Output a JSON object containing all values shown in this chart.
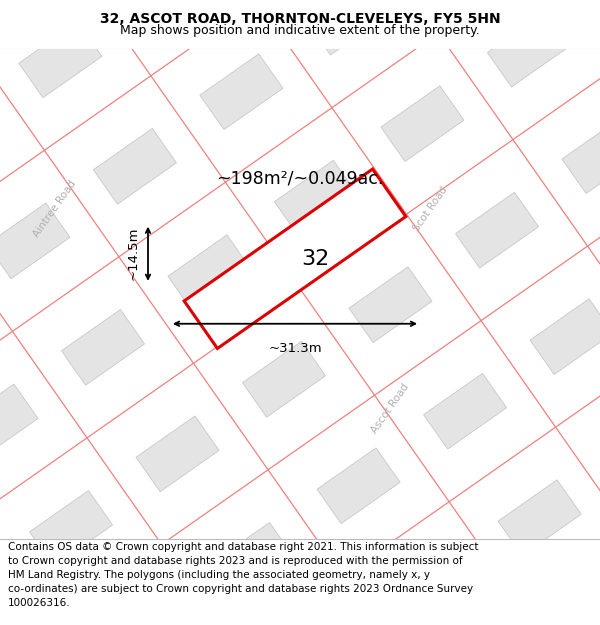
{
  "title_line1": "32, ASCOT ROAD, THORNTON-CLEVELEYS, FY5 5HN",
  "title_line2": "Map shows position and indicative extent of the property.",
  "footer_text": "Contains OS data © Crown copyright and database right 2021. This information is subject\nto Crown copyright and database rights 2023 and is reproduced with the permission of\nHM Land Registry. The polygons (including the associated geometry, namely x, y\nco-ordinates) are subject to Crown copyright and database rights 2023 Ordnance Survey\n100026316.",
  "area_label": "~198m²/~0.049ac.",
  "number_label": "32",
  "dim_width": "~31.3m",
  "dim_height": "~14.5m",
  "road_label_left": "Aintree Road",
  "road_label_scot_top": "Scot Road",
  "road_label_ascot_bottom": "Ascot Road",
  "map_bg": "#ffffff",
  "block_fill": "#e4e4e4",
  "block_edge": "#c8c8c8",
  "road_line_color": "#f08080",
  "highlight_color": "#dd0000",
  "title_fontsize": 10,
  "subtitle_fontsize": 9,
  "footer_fontsize": 7.5,
  "title_bg": "#ffffff",
  "footer_bg": "#ffffff"
}
